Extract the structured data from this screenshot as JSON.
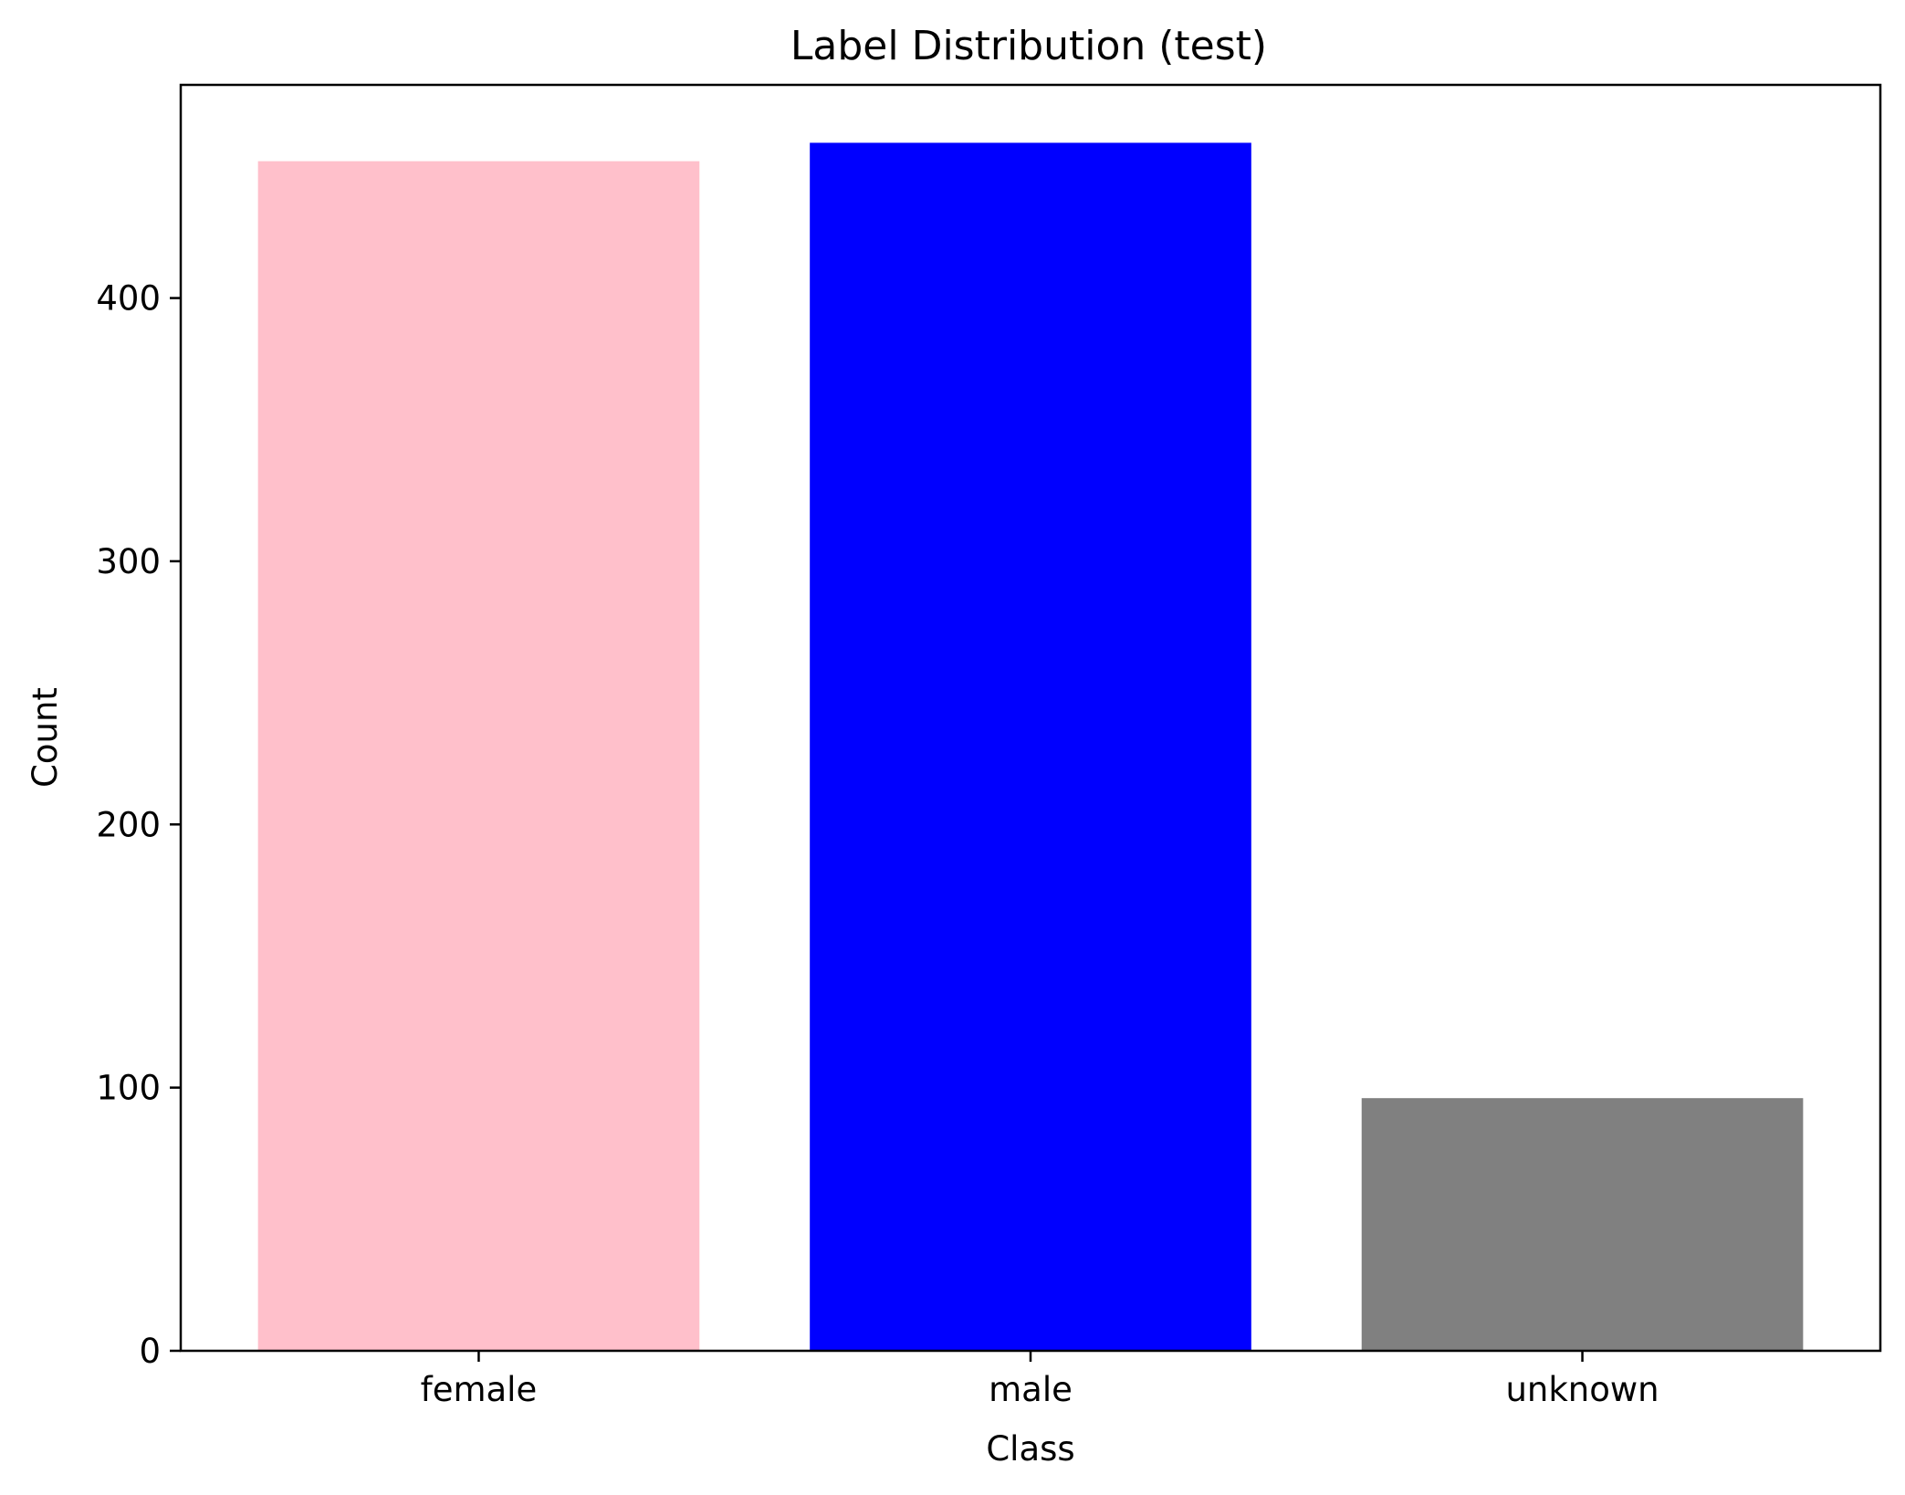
{
  "chart_data": {
    "type": "bar",
    "title": "Label Distribution (test)",
    "xlabel": "Class",
    "ylabel": "Count",
    "categories": [
      "female",
      "male",
      "unknown"
    ],
    "values": [
      452,
      459,
      96
    ],
    "colors": [
      "#ffc0cb",
      "#0000ff",
      "#808080"
    ],
    "ylim": [
      0,
      481
    ],
    "yticks": [
      0,
      100,
      200,
      300,
      400
    ],
    "ytick_labels": [
      "0",
      "100",
      "200",
      "300",
      "400"
    ],
    "grid": false,
    "legend": "none"
  }
}
